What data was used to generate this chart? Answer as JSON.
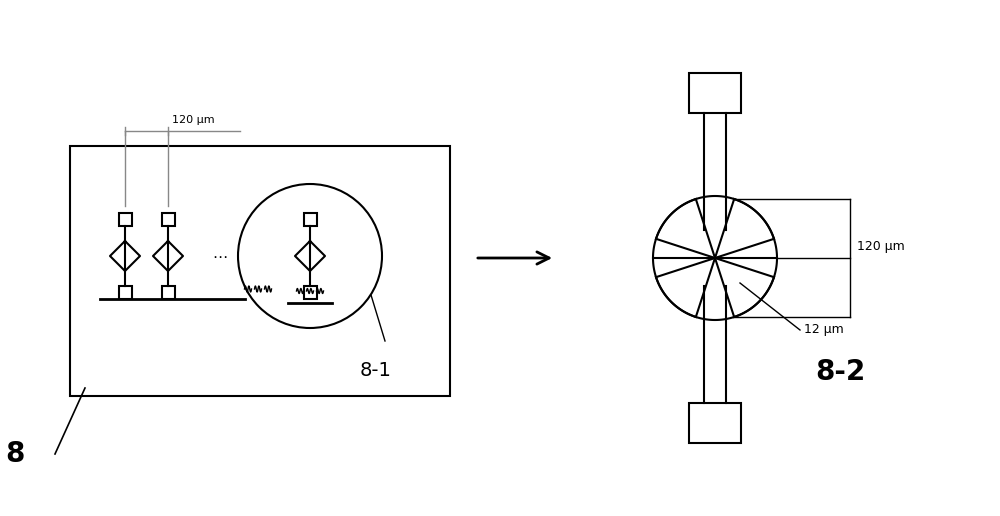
{
  "bg_color": "#ffffff",
  "line_color": "#000000",
  "gray_color": "#888888",
  "fig_width": 10.0,
  "fig_height": 5.16,
  "dpi": 100,
  "label_8": "8",
  "label_81": "8-1",
  "label_82": "8-2",
  "label_120um": "120 μm",
  "label_12um": "12 μm"
}
